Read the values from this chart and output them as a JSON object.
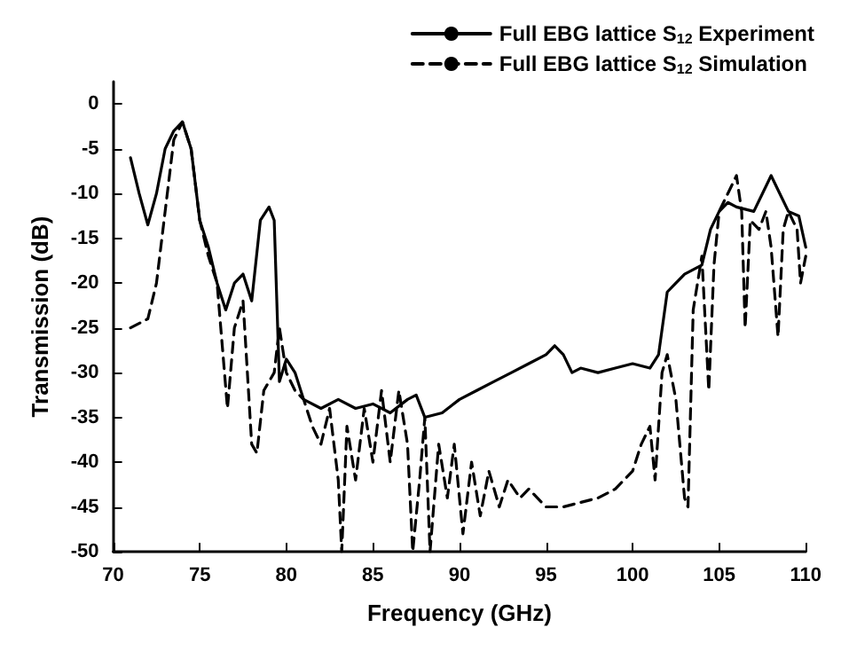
{
  "chart_data": {
    "type": "line",
    "xlabel": "Frequency (GHz)",
    "ylabel": "Transmission (dB)",
    "xlim": [
      70,
      110
    ],
    "xticks": [
      70,
      75,
      80,
      85,
      90,
      95,
      100,
      105,
      110
    ],
    "ylim": [
      -50,
      2.5
    ],
    "yticks": [
      -50,
      -45,
      -40,
      -35,
      -30,
      -25,
      -20,
      -15,
      -10,
      -5,
      0
    ],
    "grid": false,
    "legend": "top right",
    "marker": "none",
    "series": [
      {
        "name": "Full EBG lattice S$_{12}$ Experiment",
        "color": "#000000",
        "line_style": "solid",
        "x": [
          71,
          71.5,
          72,
          72.5,
          73,
          73.5,
          74,
          74.5,
          75,
          75.5,
          76,
          76.5,
          77,
          77.5,
          78,
          78.5,
          79,
          79.3,
          79.6,
          80,
          80.5,
          81,
          82,
          83,
          84,
          85,
          86,
          87,
          87.5,
          88,
          89,
          90,
          91,
          92,
          93,
          94,
          95,
          95.5,
          96,
          96.5,
          97,
          98,
          99,
          100,
          101,
          101.5,
          102,
          102.5,
          103,
          104,
          104.5,
          105,
          105.5,
          106,
          107,
          107.5,
          108,
          108.5,
          109,
          109.6,
          110
        ],
        "values": [
          -6,
          -10,
          -13.5,
          -10,
          -5,
          -3,
          -2,
          -5,
          -13,
          -16,
          -20,
          -23,
          -20,
          -19,
          -22,
          -13,
          -11.5,
          -13,
          -31,
          -28.5,
          -30,
          -33,
          -34,
          -33,
          -34,
          -33.5,
          -34.5,
          -33,
          -32.5,
          -35,
          -34.5,
          -33,
          -32,
          -31,
          -30,
          -29,
          -28,
          -27,
          -28,
          -30,
          -29.5,
          -30,
          -29.5,
          -29,
          -29.5,
          -28,
          -21,
          -20,
          -19,
          -18,
          -14,
          -12,
          -11,
          -11.5,
          -12,
          -10,
          -8,
          -10,
          -12,
          -12.5,
          -16
        ]
      },
      {
        "name": "Full EBG lattice S$_{12}$ Simulation",
        "color": "#000000",
        "line_style": "dashed",
        "x": [
          71,
          72,
          72.5,
          73,
          73.5,
          74,
          74.5,
          75,
          75.5,
          76,
          76.3,
          76.6,
          77,
          77.5,
          78,
          78.3,
          78.7,
          79.3,
          79.6,
          80,
          80.5,
          81,
          81.5,
          82,
          82.5,
          83,
          83.2,
          83.5,
          84,
          84.5,
          85,
          85.5,
          86,
          86.5,
          87,
          87.3,
          87.7,
          88,
          88.3,
          88.8,
          89.3,
          89.7,
          90.2,
          90.7,
          91.2,
          91.7,
          92.3,
          92.8,
          93.5,
          94,
          95,
          96,
          97,
          98,
          99,
          100,
          100.5,
          101,
          101.3,
          101.7,
          102,
          102.5,
          103,
          103.2,
          103.5,
          104,
          104.4,
          104.7,
          105,
          105.5,
          106,
          106.3,
          106.5,
          106.8,
          107.3,
          107.7,
          108,
          108.4,
          108.7,
          109,
          109.5,
          109.7,
          110
        ],
        "values": [
          -25,
          -24,
          -20,
          -12,
          -4,
          -2,
          -5,
          -13,
          -17,
          -20,
          -27,
          -34,
          -25,
          -22,
          -38,
          -39,
          -32,
          -30,
          -25,
          -30,
          -32,
          -33,
          -36,
          -38,
          -34,
          -42,
          -50,
          -36,
          -42,
          -34,
          -40,
          -32,
          -40,
          -32,
          -38,
          -50,
          -42,
          -35,
          -50,
          -38,
          -44,
          -38,
          -48,
          -40,
          -46,
          -41,
          -45,
          -42,
          -44,
          -43,
          -45,
          -45,
          -44.5,
          -44,
          -43,
          -41,
          -38,
          -36,
          -42,
          -30,
          -28,
          -33,
          -44,
          -45,
          -23,
          -17,
          -32,
          -18,
          -12,
          -10,
          -8,
          -12,
          -25,
          -13,
          -14,
          -12,
          -16,
          -26,
          -14,
          -12,
          -14,
          -20,
          -17
        ]
      }
    ]
  }
}
